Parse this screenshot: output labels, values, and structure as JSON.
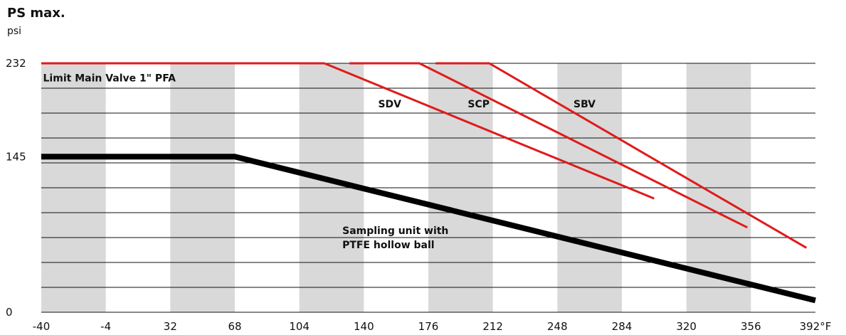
{
  "chart_data": {
    "type": "line",
    "title": "PS max.",
    "ylabel": "psi",
    "xunit": "°F",
    "xlim": [
      -40,
      392
    ],
    "ylim": [
      0,
      232
    ],
    "x_ticks": [
      -40,
      -4,
      32,
      68,
      104,
      140,
      176,
      212,
      248,
      284,
      320,
      356,
      392
    ],
    "x_tick_labels": [
      "-40",
      "-4",
      "32",
      "68",
      "104",
      "140",
      "176",
      "212",
      "248",
      "284",
      "320",
      "356",
      "392°F"
    ],
    "y_ticks": [
      0,
      145,
      232
    ],
    "y_gridlines": [
      0,
      23.2,
      46.4,
      69.6,
      92.8,
      116,
      139.2,
      162.4,
      185.6,
      208.8,
      232
    ],
    "shaded_bands": [
      [
        -40,
        -4
      ],
      [
        32,
        68
      ],
      [
        104,
        140
      ],
      [
        176,
        212
      ],
      [
        248,
        284
      ],
      [
        320,
        356
      ]
    ],
    "grid": true,
    "series": [
      {
        "name": "Limit Main Valve 1\" PFA",
        "color": "#e01b1b",
        "width": 3,
        "points": [
          [
            -40,
            232
          ],
          [
            118,
            232
          ]
        ]
      },
      {
        "name": "SDV",
        "color": "#e01b1b",
        "width": 3,
        "points": [
          [
            118,
            232
          ],
          [
            302,
            106
          ]
        ]
      },
      {
        "name": "SCP",
        "color": "#e01b1b",
        "width": 3,
        "points": [
          [
            132,
            232
          ],
          [
            171,
            232
          ],
          [
            354,
            79
          ]
        ]
      },
      {
        "name": "SBV",
        "color": "#e01b1b",
        "width": 3,
        "points": [
          [
            180,
            232
          ],
          [
            210,
            232
          ],
          [
            387,
            60
          ]
        ]
      },
      {
        "name": "Sampling unit with PTFE hollow ball",
        "color": "#000000",
        "width": 8,
        "points": [
          [
            -40,
            145
          ],
          [
            68,
            145
          ],
          [
            392,
            11
          ]
        ]
      }
    ],
    "annotations": [
      {
        "lines": [
          "Limit Main Valve 1\" PFA"
        ],
        "x": -39,
        "y": 215
      },
      {
        "lines": [
          "SDV"
        ],
        "x": 148,
        "y": 191
      },
      {
        "lines": [
          "SCP"
        ],
        "x": 198,
        "y": 191
      },
      {
        "lines": [
          "SBV"
        ],
        "x": 257,
        "y": 191
      },
      {
        "lines": [
          "Sampling unit with",
          "PTFE hollow ball"
        ],
        "x": 128,
        "y": 73
      }
    ]
  }
}
